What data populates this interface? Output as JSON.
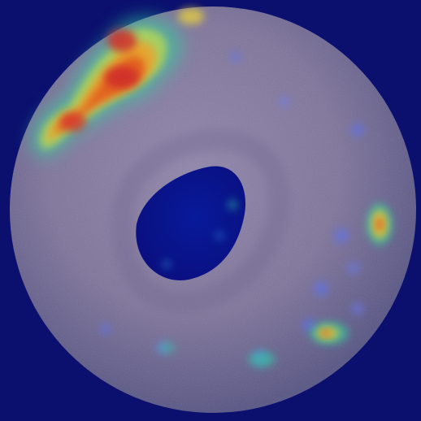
{
  "image": {
    "subject": "donut",
    "overlay": "heatmap"
  },
  "colors": {
    "background": "#0b0f6e",
    "donut_surface": "#8a7f9c",
    "donut_shadow": "#5d5a86",
    "donut_hole": "#0a0f80",
    "heat_low": "#4f7bff",
    "heat_mid": "#29d08a",
    "heat_warm": "#e8d23a",
    "heat_high": "#ef6a1d",
    "heat_peak": "#d11f2c"
  },
  "icons": {
    "heatmap": "heatmap-icon"
  }
}
